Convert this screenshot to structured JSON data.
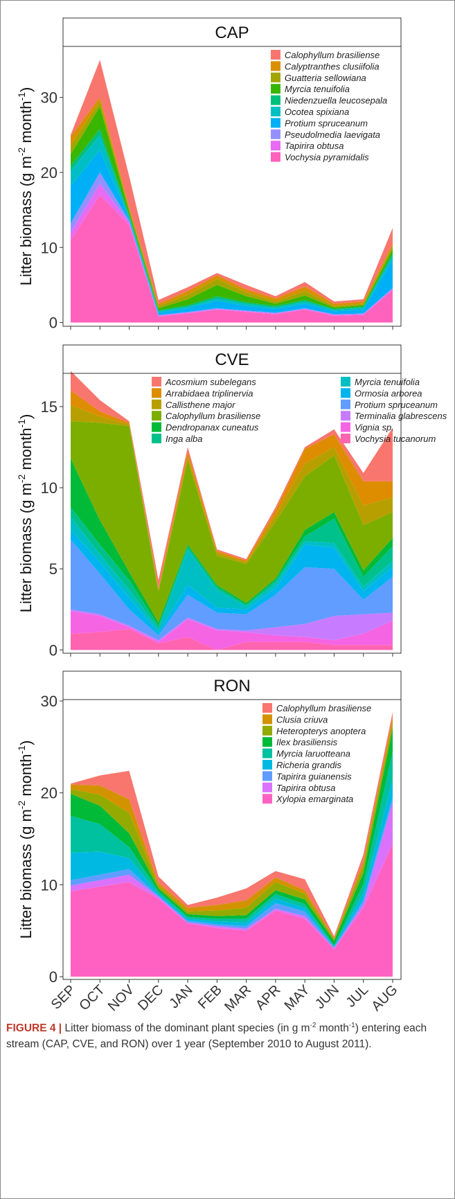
{
  "chart_data": [
    {
      "type": "area",
      "stacked": true,
      "title": "CAP",
      "ylabel": [
        "Litter biomass (g m",
        "-2",
        " month",
        "-1",
        ")"
      ],
      "ylim": [
        -0.5,
        36.8
      ],
      "yticks": [
        0,
        10,
        20,
        30
      ],
      "grid": false,
      "legend": "top-right",
      "legend_columns": 1,
      "series": [
        {
          "name": "Calophyllum brasiliense",
          "color": "#F8766D",
          "values": [
            0.2,
            5,
            4.1,
            0.5,
            0.5,
            0.3,
            0.6,
            0.3,
            0.6,
            0.3,
            0.3,
            2.1
          ]
        },
        {
          "name": "Calyptranthes clusiifolia",
          "color": "#D89000",
          "values": [
            1.2,
            0.5,
            0.3,
            0.3,
            0.5,
            0.5,
            0.4,
            0.4,
            0.6,
            0.3,
            0.3,
            0.3
          ]
        },
        {
          "name": "Guatteria sellowiana",
          "color": "#A3A500",
          "values": [
            1.2,
            0.7,
            0.3,
            0.3,
            0.6,
            0.8,
            0.5,
            0.3,
            0.6,
            0.2,
            0.2,
            0.4
          ]
        },
        {
          "name": "Myrcia tenuifolia",
          "color": "#39B600",
          "values": [
            1.5,
            3,
            0.5,
            0.3,
            0.8,
            1.5,
            0.8,
            0.3,
            0.6,
            0.2,
            0.2,
            0.6
          ]
        },
        {
          "name": "Niedenzuella leucosepala",
          "color": "#00BF7D",
          "values": [
            0.7,
            0.8,
            0.2,
            0.1,
            0.2,
            0.3,
            0.2,
            0.2,
            0.2,
            0.1,
            0.1,
            0.3
          ]
        },
        {
          "name": "Ocotea spixiana",
          "color": "#00BFC4",
          "values": [
            2,
            2,
            0.2,
            0.2,
            0.2,
            0.3,
            0.3,
            0.2,
            0.3,
            0.2,
            0.3,
            0.5
          ]
        },
        {
          "name": "Protium spruceanum",
          "color": "#00B0F6",
          "values": [
            5,
            3,
            0.3,
            0.3,
            0.5,
            1,
            0.6,
            0.5,
            0.6,
            0.4,
            0.5,
            3.8
          ]
        },
        {
          "name": "Pseudolmedia laevigata",
          "color": "#9590FF",
          "values": [
            1.2,
            1.5,
            0.3,
            0.1,
            0.1,
            0.1,
            0.1,
            0.1,
            0.1,
            0.1,
            0.1,
            0.1
          ]
        },
        {
          "name": "Tapirira obtusa",
          "color": "#E76BF3",
          "values": [
            1,
            1.5,
            0.3,
            0.1,
            0.1,
            0.1,
            0.1,
            0.1,
            0.1,
            0.1,
            0.1,
            0.2
          ]
        },
        {
          "name": "Vochysia pyramidalis",
          "color": "#FF62BC",
          "values": [
            11,
            17,
            13,
            0.8,
            1.2,
            1.7,
            1.4,
            1.1,
            1.7,
            0.9,
            1,
            4.3
          ]
        }
      ]
    },
    {
      "type": "area",
      "stacked": true,
      "title": "CVE",
      "ylabel": [
        "Litter biomass (g m",
        "-2",
        " month",
        "-1",
        ")"
      ],
      "ylim": [
        -0.2,
        17.05
      ],
      "yticks": [
        0,
        5,
        10,
        15
      ],
      "grid": false,
      "legend": "top-center",
      "legend_columns": 2,
      "series": [
        {
          "name": "Acosmium subelegans",
          "color": "#F8766D",
          "values": [
            1.2,
            0.7,
            0.1,
            0.5,
            0.3,
            0.1,
            0.1,
            0.2,
            0.1,
            0.3,
            0.5,
            3.3
          ]
        },
        {
          "name": "Arrabidaea triplinervia",
          "color": "#DE8C00",
          "values": [
            0.9,
            0.3,
            0.1,
            0.1,
            0.3,
            0.1,
            0.1,
            0.3,
            0.9,
            0.8,
            1.5,
            1
          ]
        },
        {
          "name": "Callisthene major",
          "color": "#B79F00",
          "values": [
            1,
            0.4,
            0.1,
            0.1,
            0.2,
            0.2,
            0.1,
            0.4,
            0.8,
            0.5,
            1.2,
            0.9
          ]
        },
        {
          "name": "Calophyllum brasiliense",
          "color": "#7CAE00",
          "values": [
            2.3,
            6,
            9,
            1.9,
            5.2,
            1.8,
            2.4,
            3.5,
            3.3,
            3.5,
            2.8,
            1.6
          ]
        },
        {
          "name": "Dendropanax cuneatus",
          "color": "#00BA38",
          "values": [
            3,
            1.5,
            0.5,
            0.2,
            0.1,
            0.1,
            0.1,
            0.1,
            0.4,
            0.4,
            0.4,
            0.5
          ]
        },
        {
          "name": "Inga alba",
          "color": "#00C08B",
          "values": [
            0.6,
            0.6,
            0.6,
            0.2,
            0.2,
            0.2,
            0.1,
            0.2,
            0.3,
            1.5,
            0.6,
            0.9
          ]
        },
        {
          "name": "Myrcia tenuifolia",
          "color": "#00BFC4",
          "values": [
            0.8,
            0.5,
            0.5,
            0.2,
            2.2,
            1.1,
            0.2,
            0.3,
            0.2,
            0.3,
            0.3,
            0.4
          ]
        },
        {
          "name": "Ormosia arborea",
          "color": "#00B4F0",
          "values": [
            0.6,
            0.7,
            0.7,
            0.2,
            0.6,
            0.3,
            0.3,
            0.4,
            1.4,
            1.3,
            0.5,
            0.6
          ]
        },
        {
          "name": "Protium spruceanum",
          "color": "#619CFF",
          "values": [
            4.3,
            2.5,
            1,
            0.3,
            1.4,
            1,
            1,
            2,
            3.5,
            2.9,
            0.9,
            2.2
          ]
        },
        {
          "name": "Terminalia glabrescens",
          "color": "#C77CFF",
          "values": [
            0.1,
            0.1,
            0.1,
            0.1,
            0.1,
            0.1,
            0.1,
            0.5,
            0.8,
            1.5,
            1.2,
            0.5
          ]
        },
        {
          "name": "Vignia sp.",
          "color": "#F564E3",
          "values": [
            1.4,
            1,
            0.1,
            0.1,
            1.1,
            1.2,
            0.6,
            0.4,
            0.3,
            0.3,
            0.7,
            1.5
          ]
        },
        {
          "name": "Vochysia tucanorum",
          "color": "#FF64B0",
          "values": [
            1,
            1.1,
            1.3,
            0.4,
            0.8,
            0,
            0.5,
            0.5,
            0.5,
            0.3,
            0.3,
            0.3
          ]
        }
      ]
    },
    {
      "type": "area",
      "stacked": true,
      "title": "RON",
      "ylabel": [
        "Litter biomass (g m",
        "-2",
        " month",
        "-1",
        ")"
      ],
      "categories": [
        "SEP",
        "OCT",
        "NOV",
        "DEC",
        "JAN",
        "FEB",
        "MAR",
        "APR",
        "MAY",
        "JUN",
        "JUL",
        "AUG"
      ],
      "ylim": [
        -0.3,
        30.15
      ],
      "yticks": [
        0,
        10,
        20,
        30
      ],
      "grid": false,
      "legend": "top-right",
      "legend_columns": 1,
      "series": [
        {
          "name": "Calophyllum brasiliense",
          "color": "#F8766D",
          "values": [
            0.1,
            1.1,
            3.1,
            0.7,
            0.3,
            0.8,
            1.3,
            0.7,
            1.2,
            0.2,
            0.8,
            0.6
          ]
        },
        {
          "name": "Clusia criuva",
          "color": "#D39200",
          "values": [
            0.5,
            1,
            1.5,
            0.3,
            0.4,
            0.6,
            0.8,
            0.5,
            0.4,
            0.1,
            0.4,
            0.6
          ]
        },
        {
          "name": "Heteropterys anoptera",
          "color": "#93AA00",
          "values": [
            0.5,
            1.2,
            2.2,
            0.3,
            0.3,
            0.6,
            0.8,
            0.9,
            0.6,
            0.2,
            0.8,
            0.6
          ]
        },
        {
          "name": "Ilex brasiliensis",
          "color": "#00BA38",
          "values": [
            2.4,
            2,
            1.5,
            0.3,
            0.3,
            0.3,
            0.4,
            0.4,
            0.5,
            0.5,
            1.2,
            2.5
          ]
        },
        {
          "name": "Myrcia laruotteana",
          "color": "#00C19F",
          "values": [
            4,
            3,
            1.2,
            0.3,
            0.2,
            0.3,
            0.4,
            0.5,
            0.4,
            0.1,
            1,
            3
          ]
        },
        {
          "name": "Richeria grandis",
          "color": "#00B9E3",
          "values": [
            3,
            2.5,
            1.2,
            0.2,
            0.2,
            0.3,
            0.4,
            0.5,
            0.4,
            0.1,
            0.8,
            2
          ]
        },
        {
          "name": "Tapirira guianensis",
          "color": "#619CFF",
          "values": [
            0.6,
            0.6,
            0.6,
            0.1,
            0.2,
            0.2,
            0.3,
            0.6,
            0.5,
            0.1,
            0.4,
            0.5
          ]
        },
        {
          "name": "Tapirira obtusa",
          "color": "#DB72FB",
          "values": [
            0.6,
            0.7,
            0.8,
            0.2,
            0.1,
            0.2,
            0.2,
            0.2,
            0.3,
            0.1,
            0.4,
            4.5
          ]
        },
        {
          "name": "Xylopia emarginata",
          "color": "#FF61C3",
          "values": [
            9.3,
            9.8,
            10.3,
            8.5,
            5.8,
            5.3,
            5,
            7.2,
            6.3,
            3,
            7.5,
            14.5
          ]
        }
      ]
    }
  ],
  "caption": {
    "label": "FIGURE 4 |",
    "parts": [
      " Litter biomass of the dominant plant species (in g m",
      "-2",
      " month",
      "-1",
      ") entering each stream (CAP, CVE, and RON) over 1 year (September 2010 to August 2011)."
    ]
  }
}
